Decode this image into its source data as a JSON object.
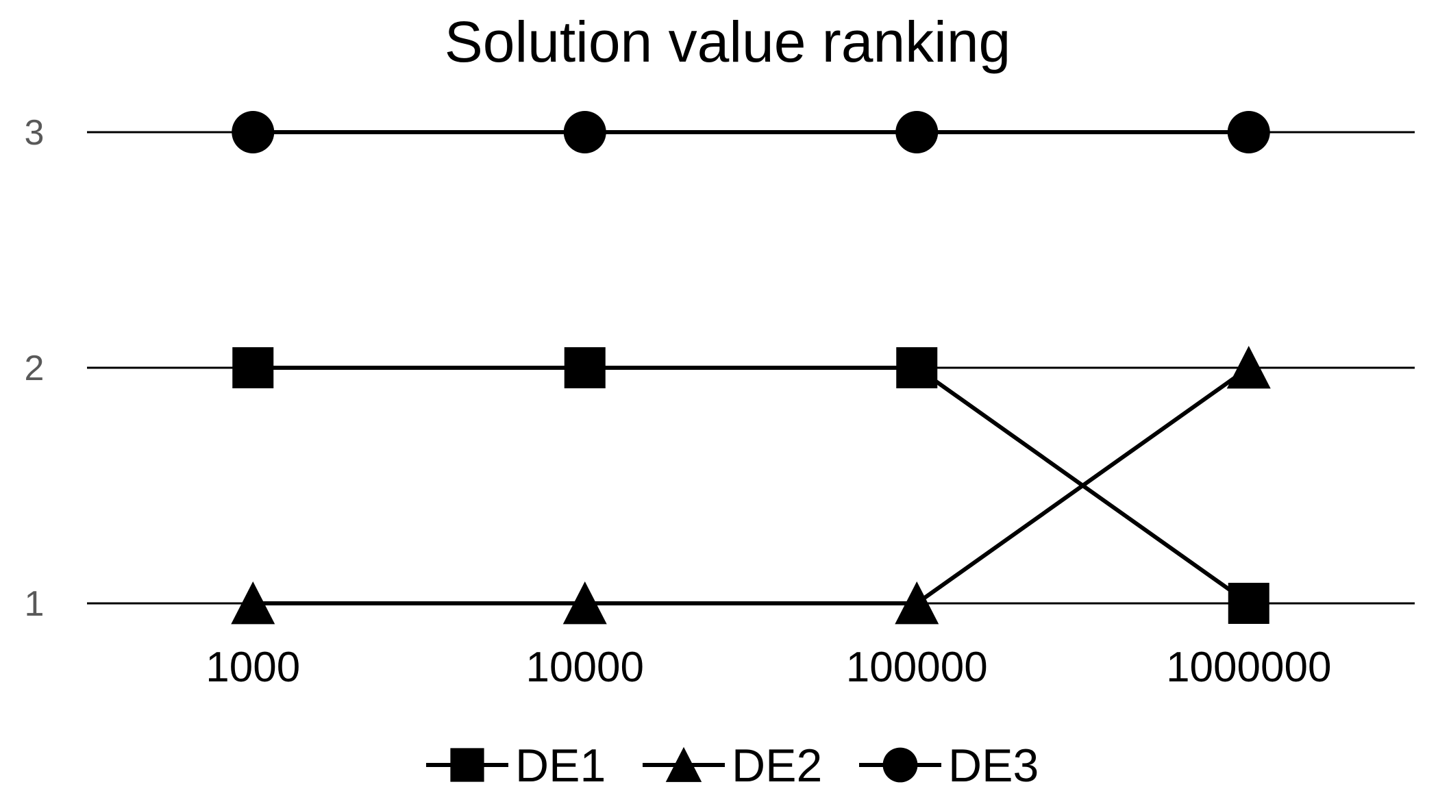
{
  "chart_data": {
    "type": "line",
    "title": "Solution value ranking",
    "xlabel": "",
    "ylabel": "",
    "categories": [
      "1000",
      "10000",
      "100000",
      "1000000"
    ],
    "y_ticks": [
      "1",
      "2",
      "3"
    ],
    "ylim": [
      1,
      3
    ],
    "grid": true,
    "legend_position": "bottom",
    "series": [
      {
        "name": "DE1",
        "marker": "square",
        "values": [
          2,
          2,
          2,
          1
        ]
      },
      {
        "name": "DE2",
        "marker": "triangle",
        "values": [
          1,
          1,
          1,
          2
        ]
      },
      {
        "name": "DE3",
        "marker": "circle",
        "values": [
          3,
          3,
          3,
          3
        ]
      }
    ],
    "colors": {
      "series": "#000000",
      "ytick": "#595959"
    }
  }
}
